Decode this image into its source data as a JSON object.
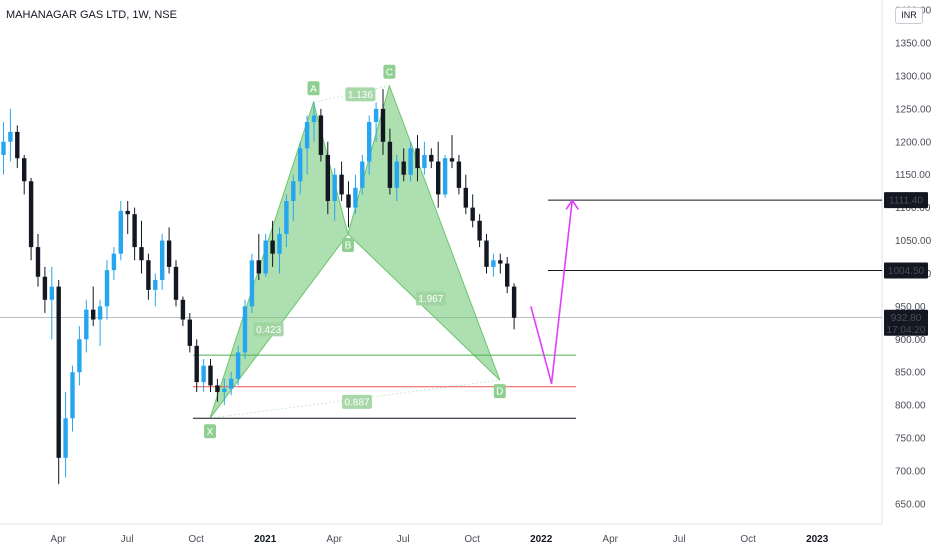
{
  "header": {
    "title": "MAHANAGAR GAS LTD, 1W, NSE",
    "currency": "INR"
  },
  "colors": {
    "up": "#26a6f0",
    "down": "#131722",
    "pattern": "#6cc56f",
    "arrow": "#e040fb",
    "target_line": "#131722",
    "green_line": "#4caf50",
    "red_line": "#ef5350"
  },
  "chart_data": {
    "type": "candlestick",
    "title": "MAHANAGAR GAS LTD, 1W, NSE",
    "ylim": [
      640,
      1410
    ],
    "y_ticks": [
      650,
      700,
      750,
      800,
      850,
      900,
      950,
      1000,
      1050,
      1100,
      1150,
      1200,
      1250,
      1300,
      1350,
      1400
    ],
    "y_tick_labels": [
      "650.00",
      "700.00",
      "750.00",
      "800.00",
      "850.00",
      "900.00",
      "950.00",
      "1000.00",
      "1050.00",
      "1100.00",
      "1150.00",
      "1200.00",
      "1250.00",
      "1300.00",
      "1350.00",
      "1400.00"
    ],
    "x_ticks": [
      {
        "label": "Apr",
        "week": 8,
        "bold": false
      },
      {
        "label": "Jul",
        "week": 18,
        "bold": false
      },
      {
        "label": "Oct",
        "week": 28,
        "bold": false
      },
      {
        "label": "2021",
        "week": 38,
        "bold": true
      },
      {
        "label": "Apr",
        "week": 48,
        "bold": false
      },
      {
        "label": "Jul",
        "week": 58,
        "bold": false
      },
      {
        "label": "Oct",
        "week": 68,
        "bold": false
      },
      {
        "label": "2022",
        "week": 78,
        "bold": true
      },
      {
        "label": "Apr",
        "week": 88,
        "bold": false
      },
      {
        "label": "Jul",
        "week": 98,
        "bold": false
      },
      {
        "label": "Oct",
        "week": 108,
        "bold": false
      },
      {
        "label": "2023",
        "week": 118,
        "bold": true
      }
    ],
    "candles_ohlc": [
      [
        1180,
        1230,
        1150,
        1200
      ],
      [
        1200,
        1250,
        1170,
        1215
      ],
      [
        1215,
        1225,
        1160,
        1175
      ],
      [
        1175,
        1180,
        1120,
        1140
      ],
      [
        1140,
        1145,
        1020,
        1040
      ],
      [
        1040,
        1060,
        980,
        995
      ],
      [
        995,
        1010,
        940,
        960
      ],
      [
        960,
        1010,
        900,
        980
      ],
      [
        980,
        990,
        680,
        720
      ],
      [
        720,
        820,
        690,
        780
      ],
      [
        780,
        860,
        760,
        850
      ],
      [
        850,
        920,
        830,
        900
      ],
      [
        900,
        960,
        880,
        945
      ],
      [
        945,
        980,
        920,
        930
      ],
      [
        930,
        960,
        890,
        950
      ],
      [
        950,
        1020,
        930,
        1005
      ],
      [
        1005,
        1040,
        990,
        1030
      ],
      [
        1030,
        1110,
        1020,
        1095
      ],
      [
        1095,
        1110,
        1060,
        1090
      ],
      [
        1090,
        1100,
        1020,
        1040
      ],
      [
        1040,
        1080,
        1000,
        1020
      ],
      [
        1020,
        1030,
        960,
        975
      ],
      [
        975,
        1000,
        950,
        990
      ],
      [
        990,
        1060,
        975,
        1050
      ],
      [
        1050,
        1070,
        1000,
        1010
      ],
      [
        1010,
        1020,
        950,
        960
      ],
      [
        960,
        965,
        920,
        930
      ],
      [
        930,
        940,
        880,
        890
      ],
      [
        890,
        900,
        820,
        835
      ],
      [
        835,
        870,
        820,
        860
      ],
      [
        860,
        870,
        820,
        830
      ],
      [
        830,
        840,
        805,
        820
      ],
      [
        820,
        840,
        800,
        825
      ],
      [
        825,
        850,
        815,
        840
      ],
      [
        840,
        890,
        830,
        880
      ],
      [
        880,
        960,
        870,
        950
      ],
      [
        950,
        1030,
        940,
        1020
      ],
      [
        1020,
        1060,
        990,
        1000
      ],
      [
        1000,
        1060,
        995,
        1050
      ],
      [
        1050,
        1080,
        1010,
        1030
      ],
      [
        1030,
        1070,
        1000,
        1060
      ],
      [
        1060,
        1120,
        1040,
        1110
      ],
      [
        1110,
        1150,
        1080,
        1140
      ],
      [
        1140,
        1200,
        1120,
        1190
      ],
      [
        1190,
        1240,
        1150,
        1230
      ],
      [
        1230,
        1260,
        1200,
        1240
      ],
      [
        1240,
        1250,
        1170,
        1180
      ],
      [
        1180,
        1200,
        1090,
        1110
      ],
      [
        1110,
        1160,
        1080,
        1150
      ],
      [
        1150,
        1170,
        1110,
        1120
      ],
      [
        1120,
        1140,
        1070,
        1100
      ],
      [
        1100,
        1150,
        1090,
        1130
      ],
      [
        1130,
        1180,
        1120,
        1170
      ],
      [
        1170,
        1240,
        1150,
        1230
      ],
      [
        1230,
        1260,
        1200,
        1250
      ],
      [
        1250,
        1280,
        1180,
        1200
      ],
      [
        1200,
        1220,
        1120,
        1130
      ],
      [
        1130,
        1180,
        1110,
        1170
      ],
      [
        1170,
        1190,
        1140,
        1150
      ],
      [
        1150,
        1200,
        1140,
        1190
      ],
      [
        1190,
        1210,
        1140,
        1160
      ],
      [
        1160,
        1200,
        1150,
        1180
      ],
      [
        1180,
        1190,
        1160,
        1170
      ],
      [
        1170,
        1200,
        1100,
        1120
      ],
      [
        1120,
        1180,
        1115,
        1175
      ],
      [
        1175,
        1210,
        1160,
        1170
      ],
      [
        1170,
        1180,
        1120,
        1130
      ],
      [
        1130,
        1150,
        1090,
        1100
      ],
      [
        1100,
        1120,
        1070,
        1080
      ],
      [
        1080,
        1090,
        1040,
        1050
      ],
      [
        1050,
        1060,
        1000,
        1010
      ],
      [
        1010,
        1030,
        995,
        1020
      ],
      [
        1020,
        1030,
        1000,
        1015
      ],
      [
        1015,
        1025,
        970,
        980
      ],
      [
        980,
        985,
        915,
        932.8
      ]
    ],
    "harmonic_points": [
      {
        "label": "X",
        "week": 30,
        "price": 780
      },
      {
        "label": "A",
        "week": 45,
        "price": 1260
      },
      {
        "label": "B",
        "week": 50,
        "price": 1060
      },
      {
        "label": "C",
        "week": 56,
        "price": 1285
      },
      {
        "label": "D",
        "week": 72,
        "price": 838
      }
    ],
    "ratios": [
      {
        "value": "0.423",
        "week": 38.5,
        "price": 915
      },
      {
        "value": "1.136",
        "week": 51.8,
        "price": 1272
      },
      {
        "value": "1.967",
        "week": 62,
        "price": 962
      },
      {
        "value": "0.887",
        "week": 51.3,
        "price": 805
      }
    ],
    "horizontal_lines": [
      {
        "price": 876,
        "color": "green"
      },
      {
        "price": 828,
        "color": "red"
      },
      {
        "price": 780,
        "color": "dark"
      }
    ],
    "target_lines": [
      {
        "price": 1111.4,
        "label": "1111.40"
      },
      {
        "price": 1004.5,
        "label": "1004.50"
      }
    ],
    "projection_arrow": {
      "path": [
        [
          76.5,
          950
        ],
        [
          79.5,
          833
        ],
        [
          82.5,
          1111
        ]
      ]
    },
    "last_price": {
      "value": 932.8,
      "label": "932.80",
      "countdown": "17:04:20"
    }
  }
}
